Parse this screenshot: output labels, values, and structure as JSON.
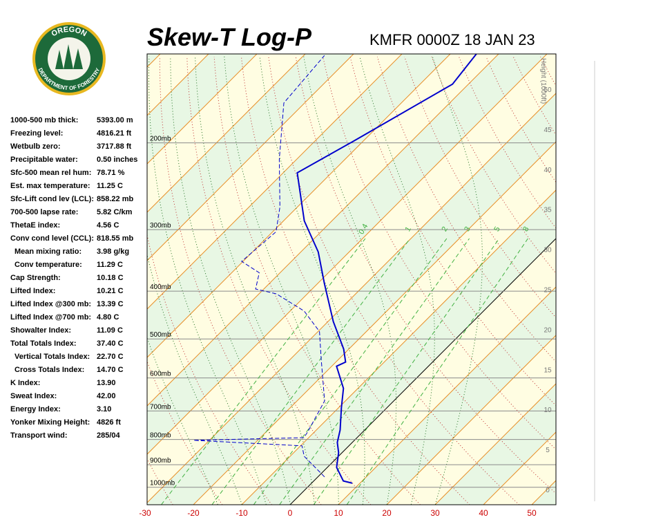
{
  "header": {
    "title": "Skew-T Log-P",
    "station": "KMFR 0000Z 18 JAN 23"
  },
  "logo": {
    "top": "OREGON",
    "bottom": "DEPARTMENT OF FORESTRY"
  },
  "stats": [
    [
      "1000-500 mb thick:",
      "5393.00 m"
    ],
    [
      "Freezing level:",
      "4816.21 ft"
    ],
    [
      "Wetbulb zero:",
      "3717.88 ft"
    ],
    [
      "Precipitable water:",
      "0.50 inches"
    ],
    [
      "Sfc-500 mean rel hum:",
      "78.71 %"
    ],
    [
      "Est. max temperature:",
      "11.25 C"
    ],
    [
      "Sfc-Lift cond lev (LCL):",
      "858.22 mb"
    ],
    [
      "700-500 lapse rate:",
      "5.82 C/km"
    ],
    [
      "ThetaE index:",
      "4.56 C"
    ],
    [
      "Conv cond level (CCL):",
      "818.55 mb"
    ],
    [
      "Mean mixing ratio:",
      "3.98 g/kg"
    ],
    [
      "Conv temperature:",
      "11.29 C"
    ],
    [
      "Cap Strength:",
      "10.18 C"
    ],
    [
      "Lifted Index:",
      "10.21 C"
    ],
    [
      "Lifted Index @300 mb:",
      "13.39 C"
    ],
    [
      "Lifted Index @700 mb:",
      "4.80 C"
    ],
    [
      "Showalter Index:",
      "11.09 C"
    ],
    [
      "Total Totals Index:",
      "37.40 C"
    ],
    [
      "Vertical Totals Index:",
      "22.70 C"
    ],
    [
      "Cross Totals Index:",
      "14.70 C"
    ],
    [
      "K Index:",
      "13.90"
    ],
    [
      "Sweat Index:",
      "42.00"
    ],
    [
      "Energy Index:",
      "3.10"
    ],
    [
      "Yonker Mixing Height:",
      "4826 ft"
    ],
    [
      "Transport wind:",
      "285/04"
    ]
  ],
  "chart_data": {
    "type": "skewt",
    "xlim": [
      -30,
      55
    ],
    "xticks": [
      -30,
      -20,
      -10,
      0,
      10,
      20,
      30,
      40,
      50
    ],
    "ylim": [
      1085,
      132
    ],
    "log_y": true,
    "yticks": [
      {
        "value": 1000,
        "label": "1000mb"
      },
      {
        "value": 900,
        "label": "900mb"
      },
      {
        "value": 800,
        "label": "800mb"
      },
      {
        "value": 700,
        "label": "700mb"
      },
      {
        "value": 600,
        "label": "600mb"
      },
      {
        "value": 500,
        "label": "500mb"
      },
      {
        "value": 400,
        "label": "400mb"
      },
      {
        "value": 300,
        "label": "300mb"
      },
      {
        "value": 200,
        "label": "200mb"
      }
    ],
    "y2label": "Height (1000ft)",
    "y2lim": [
      -1.9,
      54.4
    ],
    "y2ticks": [
      0,
      5,
      10,
      15,
      20,
      25,
      30,
      35,
      40,
      45,
      50
    ],
    "mixing_ratios": [
      0.4,
      1,
      2,
      3,
      5,
      8
    ],
    "series": [
      {
        "color": "#0000cc",
        "dashed": false,
        "x": [
          8.4,
          6.1,
          1.9,
          -0.7,
          -3.1,
          -5.1,
          -9.4,
          -13.0,
          -19.0,
          -18.0,
          -21.1,
          -28.9,
          -38.6,
          -46.4,
          -55.7,
          -67.1,
          -62.1,
          -53.3,
          -54.6
        ],
        "y": [
          981,
          971,
          911,
          851,
          811,
          765,
          690,
          630,
          568,
          557,
          524,
          461,
          386,
          333,
          288,
          230,
          199,
          152,
          132
        ]
      },
      {
        "color": "#0000cc",
        "dashed": true,
        "x": [
          1.4,
          -7.1,
          -9.7,
          -33.3,
          -11.0,
          -11.4,
          -14.3,
          -23.6,
          -29.7,
          -37.1,
          -46.4,
          -51.7,
          -54.3,
          -60.3,
          -59.3,
          -63.6,
          -73.6,
          -84.3,
          -85.7
        ],
        "y": [
          953,
          865,
          824,
          803,
          793,
          772,
          668,
          550,
          483,
          439,
          405,
          396,
          367,
          348,
          303,
          270,
          216,
          166,
          133
        ]
      }
    ]
  }
}
